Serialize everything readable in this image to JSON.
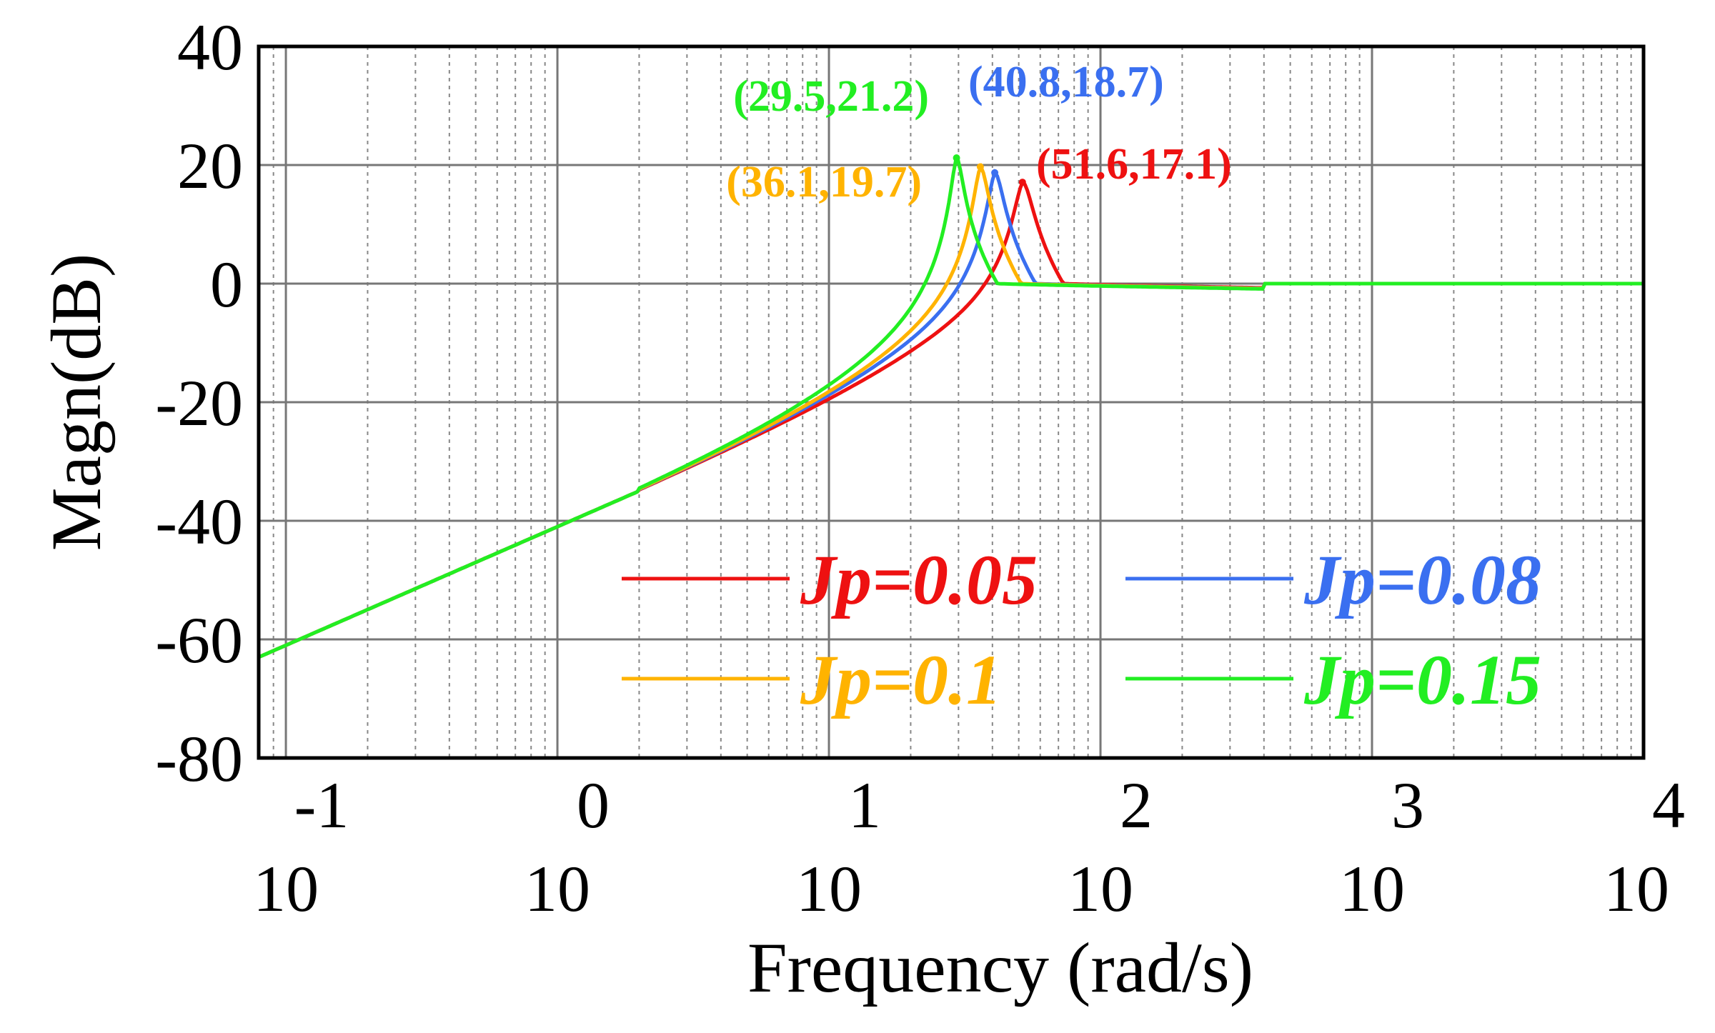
{
  "chart_data": {
    "type": "line",
    "title": "",
    "xlabel": "Frequency  (rad/s)",
    "ylabel": "Magn(dB)",
    "xscale": "log",
    "xlim": [
      0.0794,
      10000
    ],
    "ylim": [
      -80,
      40
    ],
    "grid": true,
    "y_ticks": [
      {
        "value": 40,
        "label": "40"
      },
      {
        "value": 20,
        "label": "20"
      },
      {
        "value": 0,
        "label": "0"
      },
      {
        "value": -20,
        "label": "-20"
      },
      {
        "value": -40,
        "label": "-40"
      },
      {
        "value": -60,
        "label": "-60"
      },
      {
        "value": -80,
        "label": "-80"
      }
    ],
    "x_ticks": [
      {
        "value": 0.1,
        "base": "10",
        "exponent": "-1"
      },
      {
        "value": 1,
        "base": "10",
        "exponent": "0"
      },
      {
        "value": 10,
        "base": "10",
        "exponent": "1"
      },
      {
        "value": 100,
        "base": "10",
        "exponent": "2"
      },
      {
        "value": 1000,
        "base": "10",
        "exponent": "3"
      },
      {
        "value": 10000,
        "base": "10",
        "exponent": "4"
      }
    ],
    "legend_placement": "lower-right",
    "series": [
      {
        "name": "Jp=0.05",
        "color": "#ee1111",
        "peak": {
          "x": 51.6,
          "y": 17.1,
          "label": "(51.6,17.1)"
        }
      },
      {
        "name": "Jp=0.08",
        "color": "#3a6ff0",
        "peak": {
          "x": 40.8,
          "y": 18.7,
          "label": "(40.8,18.7)"
        }
      },
      {
        "name": "Jp=0.1",
        "color": "#ffb300",
        "peak": {
          "x": 36.1,
          "y": 19.7,
          "label": "(36.1,19.7)"
        }
      },
      {
        "name": "Jp=0.15",
        "color": "#22ee22",
        "peak": {
          "x": 29.5,
          "y": 21.2,
          "label": "(29.5,21.2)"
        }
      }
    ]
  }
}
